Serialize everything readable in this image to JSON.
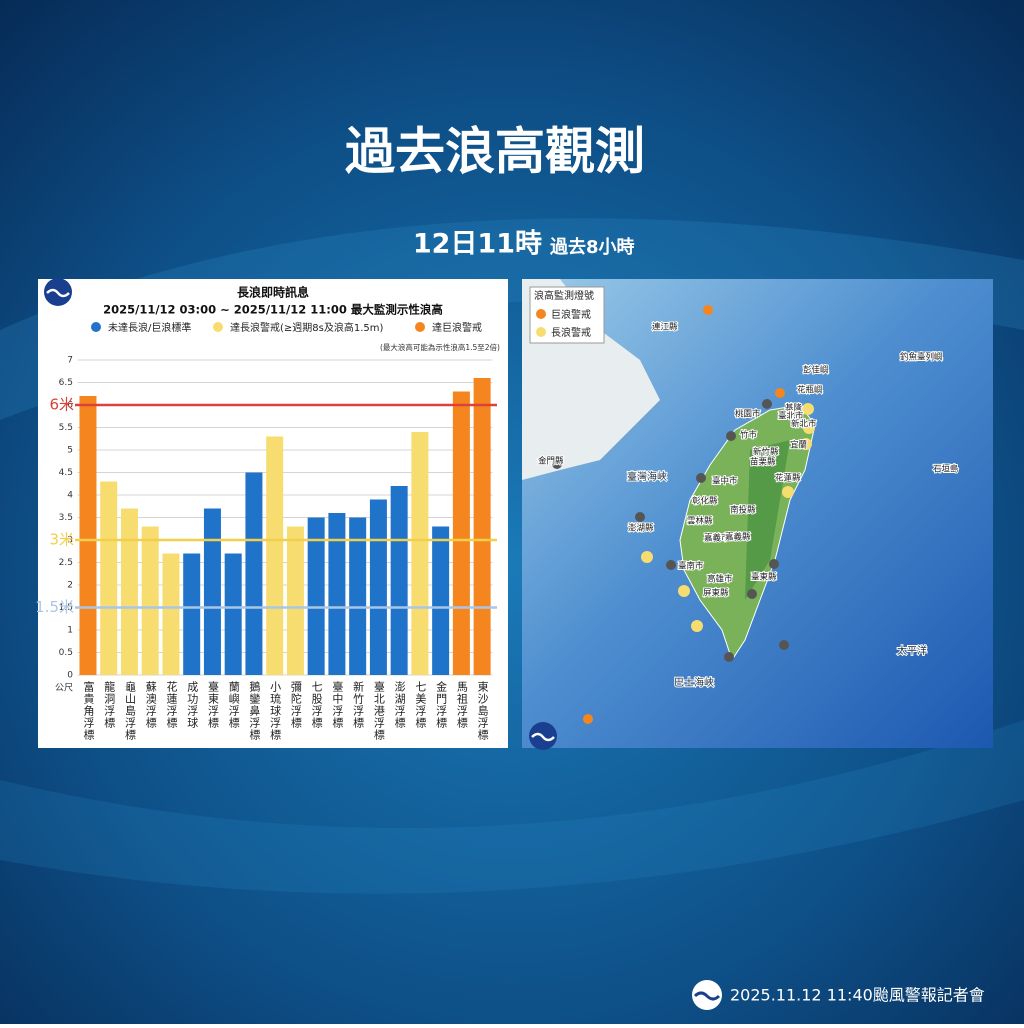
{
  "header": {
    "title": "過去浪高觀測",
    "time": "12日11時",
    "period": "過去8小時"
  },
  "chart_data": {
    "type": "bar",
    "title": "長浪即時訊息",
    "subtitle": "2025/11/12 03:00 ~ 2025/11/12 11:00 最大監測示性浪高",
    "note": "(最大浪高可能為示性浪高1.5至2倍)",
    "y_unit": "公尺",
    "legend": [
      {
        "name": "未達長浪/巨浪標準",
        "color": "#1f73c9"
      },
      {
        "name": "達長浪警戒(≥週期8s及浪高1.5m)",
        "color": "#f7dc6f"
      },
      {
        "name": "達巨浪警戒",
        "color": "#f5851f"
      }
    ],
    "categories": [
      "富貴角浮標",
      "龍洞浮標",
      "龜山島浮標",
      "蘇澳浮標",
      "花蓮浮標",
      "成功浮球",
      "臺東浮標",
      "蘭嶼浮標",
      "鵝鑾鼻浮標",
      "小琉球浮標",
      "彌陀浮標",
      "七股浮標",
      "臺中浮標",
      "新竹浮標",
      "臺北港浮標",
      "澎湖浮標",
      "七美浮標",
      "金門浮標",
      "馬祖浮標",
      "東沙島浮標"
    ],
    "values": [
      6.2,
      4.3,
      3.7,
      3.3,
      2.7,
      2.7,
      3.7,
      2.7,
      4.5,
      5.3,
      3.3,
      3.5,
      3.6,
      3.5,
      3.9,
      4.2,
      5.4,
      3.3,
      6.3,
      6.6
    ],
    "colors": [
      "#f5851f",
      "#f7dc6f",
      "#f7dc6f",
      "#f7dc6f",
      "#f7dc6f",
      "#1f73c9",
      "#1f73c9",
      "#1f73c9",
      "#1f73c9",
      "#f7dc6f",
      "#f7dc6f",
      "#1f73c9",
      "#1f73c9",
      "#1f73c9",
      "#1f73c9",
      "#1f73c9",
      "#f7dc6f",
      "#1f73c9",
      "#f5851f",
      "#f5851f"
    ],
    "ylim": [
      0,
      7
    ],
    "yticks": [
      0,
      0.5,
      1,
      1.5,
      2,
      2.5,
      3,
      3.5,
      4,
      4.5,
      5,
      5.5,
      6,
      6.5,
      7
    ],
    "grid": true,
    "reference_lines": [
      {
        "value": 6,
        "label": "6米",
        "color": "#d9413a"
      },
      {
        "value": 3,
        "label": "3米",
        "color": "#f2cf4a"
      },
      {
        "value": 1.5,
        "label": "1.5米",
        "color": "#a9c6e6"
      }
    ]
  },
  "map": {
    "legend_title": "浪高監測燈號",
    "legend": [
      {
        "name": "巨浪警戒",
        "color": "#f5851f"
      },
      {
        "name": "長浪警戒",
        "color": "#f7dc6f"
      }
    ],
    "labels": [
      "連江縣",
      "彭佳嶼",
      "花瓶嶼",
      "釣魚臺列嶼",
      "基隆",
      "桃園市",
      "臺北市",
      "新北市",
      "竹市",
      "宜蘭",
      "新竹縣",
      "苗栗縣",
      "臺中市",
      "花蓮縣",
      "彰化縣",
      "南投縣",
      "雲林縣",
      "嘉義市",
      "嘉義縣",
      "臺南市",
      "高雄市",
      "臺東縣",
      "屏東縣",
      "澎湖縣",
      "金門縣",
      "臺灣海峽",
      "巴士海峽",
      "太平洋",
      "石垣島"
    ]
  },
  "footer": "2025.11.12 11:40颱風警報記者會"
}
